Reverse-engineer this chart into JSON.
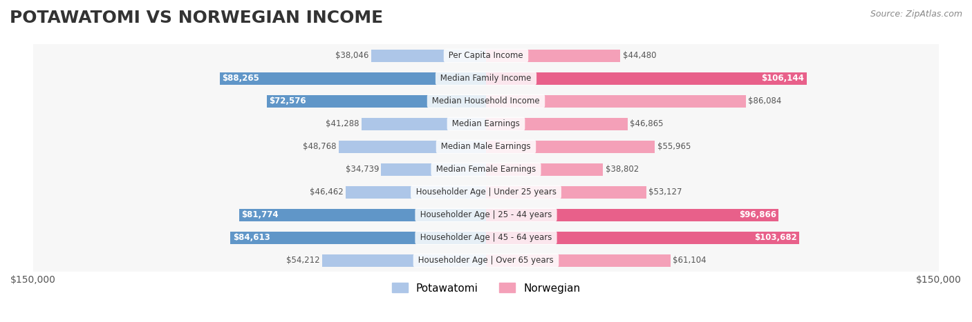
{
  "title": "POTAWATOMI VS NORWEGIAN INCOME",
  "source": "Source: ZipAtlas.com",
  "categories": [
    "Per Capita Income",
    "Median Family Income",
    "Median Household Income",
    "Median Earnings",
    "Median Male Earnings",
    "Median Female Earnings",
    "Householder Age | Under 25 years",
    "Householder Age | 25 - 44 years",
    "Householder Age | 45 - 64 years",
    "Householder Age | Over 65 years"
  ],
  "potawatomi": [
    38046,
    88265,
    72576,
    41288,
    48768,
    34739,
    46462,
    81774,
    84613,
    54212
  ],
  "norwegian": [
    44480,
    106144,
    86084,
    46865,
    55965,
    38802,
    53127,
    96866,
    103682,
    61104
  ],
  "potawatomi_labels": [
    "$38,046",
    "$88,265",
    "$72,576",
    "$41,288",
    "$48,768",
    "$34,739",
    "$46,462",
    "$81,774",
    "$84,613",
    "$54,212"
  ],
  "norwegian_labels": [
    "$44,480",
    "$106,144",
    "$86,084",
    "$46,865",
    "$55,965",
    "$38,802",
    "$53,127",
    "$96,866",
    "$103,682",
    "$61,104"
  ],
  "norwegian_large": [
    false,
    true,
    false,
    false,
    false,
    false,
    false,
    true,
    true,
    false
  ],
  "potawatomi_color_light": "#adc6e8",
  "potawatomi_color_dark": "#6096c8",
  "norwegian_color_light": "#f4a0b8",
  "norwegian_color_dark": "#e8608a",
  "max_value": 150000,
  "bg_row_color": "#f0f0f0",
  "title_fontsize": 18,
  "label_fontsize": 10,
  "axis_label_fontsize": 10,
  "legend_fontsize": 11
}
